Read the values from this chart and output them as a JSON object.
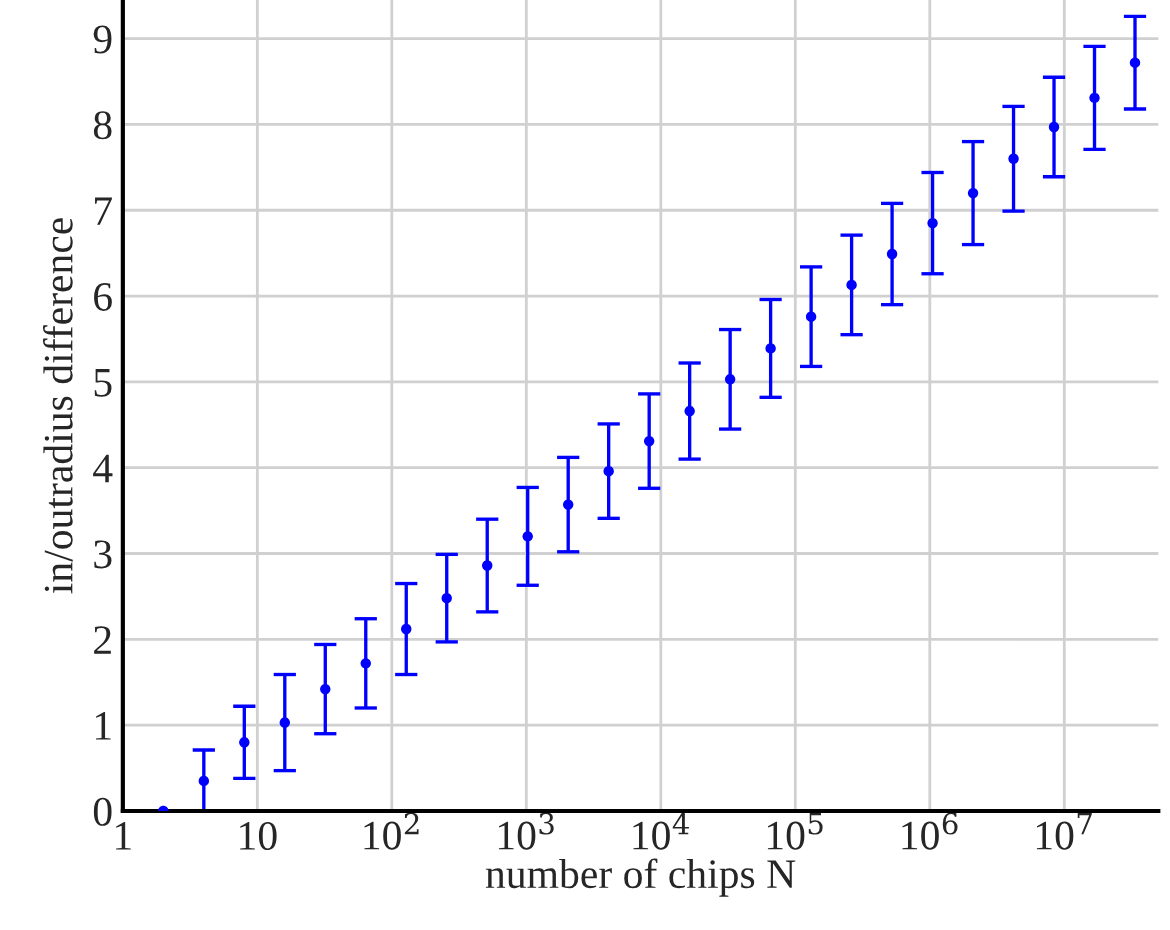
{
  "chart_data": {
    "type": "scatter",
    "xlabel": "number of chips N",
    "ylabel": "in/outradius difference",
    "x": [
      2,
      4,
      8,
      16,
      32,
      64,
      128,
      256,
      512,
      1024,
      2048,
      4096,
      8192,
      16384,
      32768,
      65536,
      131072,
      262144,
      524288,
      1048576,
      2097152,
      4194304,
      8388608,
      16777216,
      33554432
    ],
    "series": [
      {
        "color": "#0000ff",
        "values": [
          0,
          0.35,
          0.8,
          1.03,
          1.42,
          1.72,
          2.12,
          2.48,
          2.86,
          3.2,
          3.57,
          3.96,
          4.31,
          4.66,
          5.03,
          5.39,
          5.76,
          6.13,
          6.49,
          6.85,
          7.2,
          7.6,
          7.97,
          8.31,
          8.72
        ],
        "errors": [
          null,
          0.36,
          0.42,
          0.56,
          0.52,
          0.52,
          0.53,
          0.51,
          0.54,
          0.57,
          0.55,
          0.55,
          0.55,
          0.56,
          0.58,
          0.57,
          0.58,
          0.58,
          0.59,
          0.59,
          0.6,
          0.61,
          0.58,
          0.6,
          0.54
        ]
      }
    ],
    "log": "x",
    "xlim": [
      1,
      50000000
    ],
    "ylim": [
      0,
      9.45
    ],
    "xticks": [
      1,
      10,
      {
        "value": 100,
        "label": "10$^{2}$"
      },
      {
        "value": 1000,
        "label": "10$^{3}$"
      },
      {
        "value": 10000,
        "label": "10$^{4}$"
      },
      {
        "value": 100000,
        "label": "10$^{5}$"
      },
      {
        "value": 1000000,
        "label": "10$^{6}$"
      },
      {
        "value": 10000000,
        "label": "10$^{7}$"
      }
    ],
    "yticks": [
      0,
      1,
      2,
      3,
      4,
      5,
      6,
      7,
      8,
      9
    ],
    "grid": true,
    "marker": "circle"
  }
}
